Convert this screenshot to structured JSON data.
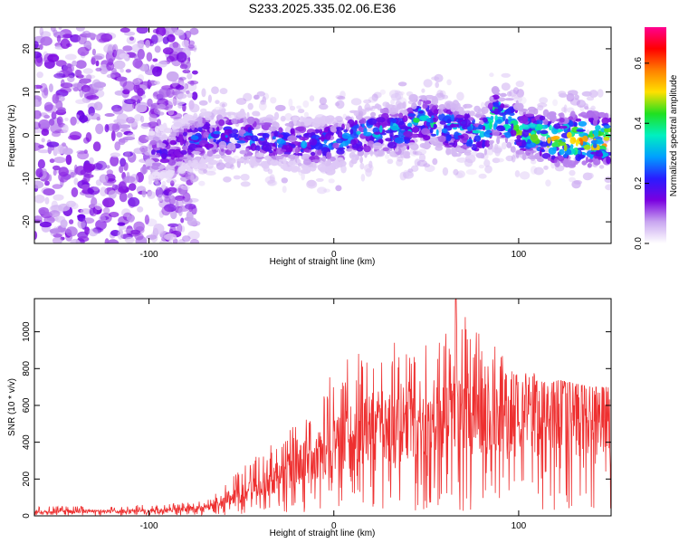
{
  "title": "S233.2025.335.02.06.E36",
  "chart_data": [
    {
      "type": "heatmap",
      "xlabel": "Height of straight line (km)",
      "ylabel": "Frequency (Hz)",
      "xlim": [
        -162,
        150
      ],
      "ylim": [
        -25,
        25
      ],
      "xticks": [
        -100,
        0,
        100
      ],
      "xtick_labels": [
        "-100",
        "0",
        "100"
      ],
      "yticks": [
        -20,
        -10,
        0,
        10,
        20
      ],
      "ytick_labels": [
        "-20",
        "-10",
        "0",
        "10",
        "20"
      ],
      "signal_band": {
        "x": [
          -100,
          -75,
          -60,
          -40,
          -20,
          0,
          20,
          40,
          45,
          60,
          80,
          88,
          100,
          120,
          140,
          150
        ],
        "center_hz": [
          -5,
          -1,
          0,
          -1,
          -2,
          -2,
          1,
          1,
          4,
          2,
          0,
          5,
          1,
          -1,
          -1,
          -1
        ],
        "peak_amplitude": [
          0.15,
          0.25,
          0.28,
          0.28,
          0.25,
          0.3,
          0.33,
          0.35,
          0.38,
          0.37,
          0.38,
          0.48,
          0.45,
          0.55,
          0.65,
          0.62
        ]
      },
      "colorbar": {
        "label": "Normalized spectral amplitude",
        "range": [
          0,
          0.72
        ],
        "ticks": [
          0.0,
          0.2,
          0.4,
          0.6
        ],
        "tick_labels": [
          "0.0",
          "0.2",
          "0.4",
          "0.6"
        ],
        "colors": [
          "#ffffff",
          "#c9a6f0",
          "#7a00e0",
          "#2a1cff",
          "#00a0ff",
          "#00f0c0",
          "#20e020",
          "#ffe000",
          "#ff8000",
          "#ff0000",
          "#ff0090"
        ]
      }
    },
    {
      "type": "line",
      "xlabel": "Height of straight line (km)",
      "ylabel": "SNR (10 * v/v)",
      "xlim": [
        -162,
        150
      ],
      "ylim": [
        0,
        1180
      ],
      "xticks": [
        -100,
        0,
        100
      ],
      "xtick_labels": [
        "-100",
        "0",
        "100"
      ],
      "yticks": [
        0,
        200,
        400,
        600,
        800,
        1000
      ],
      "ytick_labels": [
        "0",
        "200",
        "400",
        "600",
        "800",
        "1000"
      ],
      "series": [
        {
          "name": "SNR",
          "color": "#ee3030",
          "envelope_x": [
            -162,
            -100,
            -70,
            -60,
            -40,
            -20,
            0,
            20,
            40,
            60,
            66,
            80,
            100,
            120,
            140,
            150
          ],
          "envelope_mean": [
            20,
            25,
            40,
            80,
            150,
            250,
            350,
            450,
            490,
            520,
            560,
            500,
            520,
            530,
            520,
            520
          ],
          "envelope_max": [
            50,
            60,
            80,
            160,
            350,
            500,
            800,
            940,
            980,
            1000,
            1180,
            1000,
            800,
            740,
            700,
            700
          ]
        }
      ]
    }
  ]
}
